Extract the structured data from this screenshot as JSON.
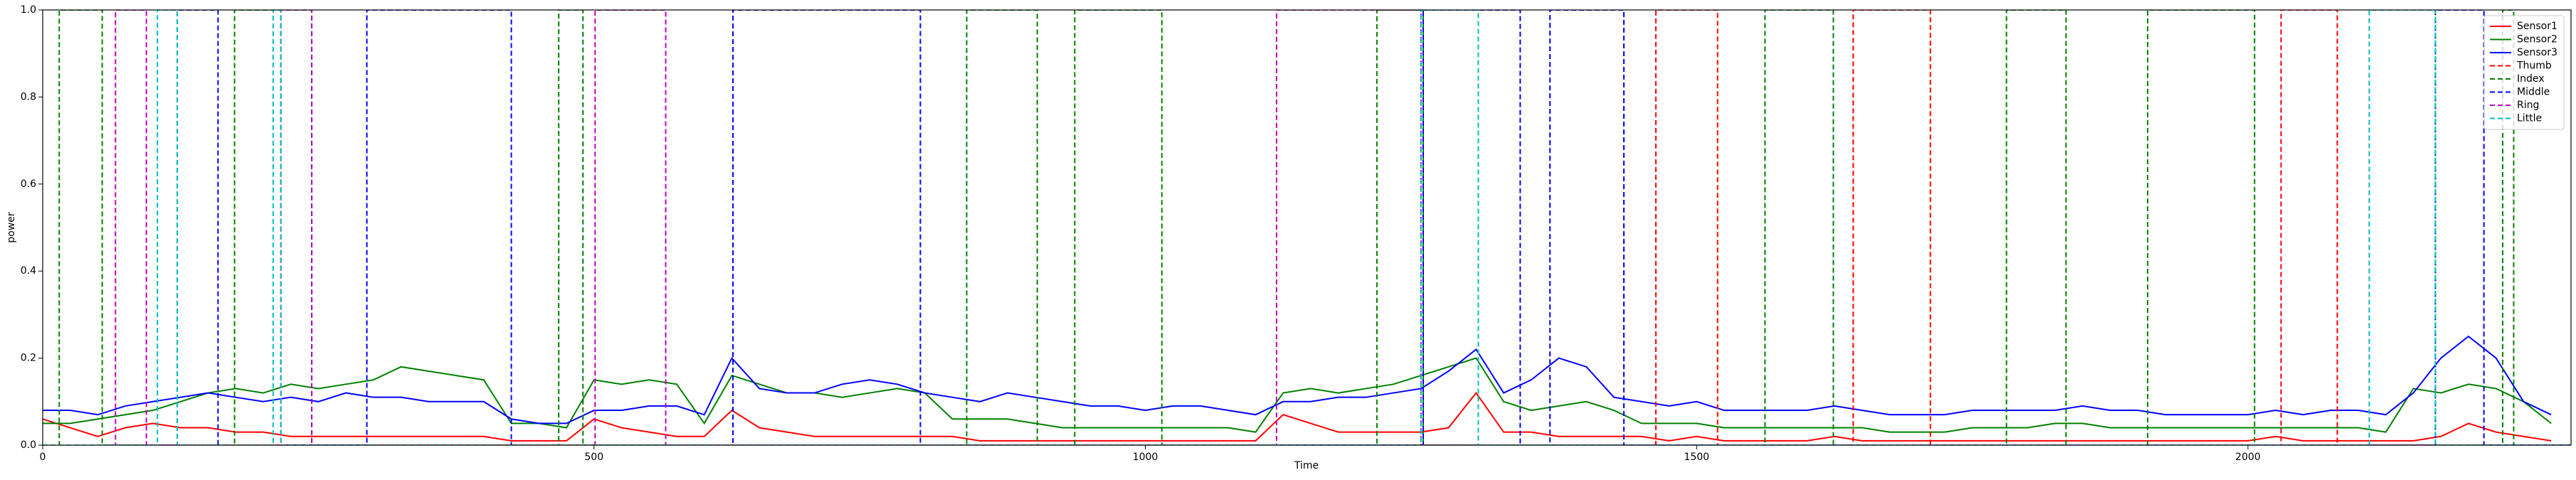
{
  "chart_data": {
    "type": "line",
    "xlabel": "Time",
    "ylabel": "power",
    "xlim": [
      0,
      2293
    ],
    "ylim": [
      0,
      1.0
    ],
    "xticks": [
      0,
      500,
      1000,
      1500,
      2000
    ],
    "yticks": [
      {
        "value": 0,
        "label": "0.0"
      },
      {
        "value": 0.2,
        "label": "0.2"
      },
      {
        "value": 0.4,
        "label": "0.4"
      },
      {
        "value": 0.6,
        "label": "0.6"
      },
      {
        "value": 0.8,
        "label": "0.8"
      },
      {
        "value": 1.0,
        "label": "1.0"
      }
    ],
    "legend": "upper right",
    "x": [
      0,
      25,
      50,
      75,
      100,
      125,
      150,
      175,
      200,
      225,
      250,
      275,
      300,
      325,
      350,
      375,
      400,
      425,
      450,
      475,
      500,
      525,
      550,
      575,
      600,
      625,
      650,
      675,
      700,
      725,
      750,
      775,
      800,
      825,
      850,
      875,
      900,
      925,
      950,
      975,
      1000,
      1025,
      1050,
      1075,
      1100,
      1125,
      1150,
      1175,
      1200,
      1225,
      1250,
      1275,
      1300,
      1325,
      1350,
      1375,
      1400,
      1425,
      1450,
      1475,
      1500,
      1525,
      1550,
      1575,
      1600,
      1625,
      1650,
      1675,
      1700,
      1725,
      1750,
      1775,
      1800,
      1825,
      1850,
      1875,
      1900,
      1925,
      1950,
      1975,
      2000,
      2025,
      2050,
      2075,
      2100,
      2125,
      2150,
      2175,
      2200,
      2225,
      2250,
      2275
    ],
    "series": [
      {
        "name": "Sensor1",
        "color": "#ff0000",
        "linestyle": "solid",
        "values": [
          0.06,
          0.04,
          0.02,
          0.04,
          0.05,
          0.04,
          0.04,
          0.03,
          0.03,
          0.02,
          0.02,
          0.02,
          0.02,
          0.02,
          0.02,
          0.02,
          0.02,
          0.01,
          0.01,
          0.01,
          0.06,
          0.04,
          0.03,
          0.02,
          0.02,
          0.08,
          0.04,
          0.03,
          0.02,
          0.02,
          0.02,
          0.02,
          0.02,
          0.02,
          0.01,
          0.01,
          0.01,
          0.01,
          0.01,
          0.01,
          0.01,
          0.01,
          0.01,
          0.01,
          0.01,
          0.07,
          0.05,
          0.03,
          0.03,
          0.03,
          0.03,
          0.04,
          0.12,
          0.03,
          0.03,
          0.02,
          0.02,
          0.02,
          0.02,
          0.01,
          0.02,
          0.01,
          0.01,
          0.01,
          0.01,
          0.02,
          0.01,
          0.01,
          0.01,
          0.01,
          0.01,
          0.01,
          0.01,
          0.01,
          0.01,
          0.01,
          0.01,
          0.01,
          0.01,
          0.01,
          0.01,
          0.02,
          0.01,
          0.01,
          0.01,
          0.01,
          0.01,
          0.02,
          0.05,
          0.03,
          0.02,
          0.01
        ]
      },
      {
        "name": "Sensor2",
        "color": "#008000",
        "linestyle": "solid",
        "values": [
          0.05,
          0.05,
          0.06,
          0.07,
          0.08,
          0.1,
          0.12,
          0.13,
          0.12,
          0.14,
          0.13,
          0.14,
          0.15,
          0.18,
          0.17,
          0.16,
          0.15,
          0.05,
          0.05,
          0.04,
          0.15,
          0.14,
          0.15,
          0.14,
          0.05,
          0.16,
          0.14,
          0.12,
          0.12,
          0.11,
          0.12,
          0.13,
          0.12,
          0.06,
          0.06,
          0.06,
          0.05,
          0.04,
          0.04,
          0.04,
          0.04,
          0.04,
          0.04,
          0.04,
          0.03,
          0.12,
          0.13,
          0.12,
          0.13,
          0.14,
          0.16,
          0.18,
          0.2,
          0.1,
          0.08,
          0.09,
          0.1,
          0.08,
          0.05,
          0.05,
          0.05,
          0.04,
          0.04,
          0.04,
          0.04,
          0.04,
          0.04,
          0.03,
          0.03,
          0.03,
          0.04,
          0.04,
          0.04,
          0.05,
          0.05,
          0.04,
          0.04,
          0.04,
          0.04,
          0.04,
          0.04,
          0.04,
          0.04,
          0.04,
          0.04,
          0.03,
          0.13,
          0.12,
          0.14,
          0.13,
          0.1,
          0.05
        ]
      },
      {
        "name": "Sensor3",
        "color": "#0000ff",
        "linestyle": "solid",
        "values": [
          0.08,
          0.08,
          0.07,
          0.09,
          0.1,
          0.11,
          0.12,
          0.11,
          0.1,
          0.11,
          0.1,
          0.12,
          0.11,
          0.11,
          0.1,
          0.1,
          0.1,
          0.06,
          0.05,
          0.05,
          0.08,
          0.08,
          0.09,
          0.09,
          0.07,
          0.2,
          0.13,
          0.12,
          0.12,
          0.14,
          0.15,
          0.14,
          0.12,
          0.11,
          0.1,
          0.12,
          0.11,
          0.1,
          0.09,
          0.09,
          0.08,
          0.09,
          0.09,
          0.08,
          0.07,
          0.1,
          0.1,
          0.11,
          0.11,
          0.12,
          0.13,
          0.17,
          0.22,
          0.12,
          0.15,
          0.2,
          0.18,
          0.11,
          0.1,
          0.09,
          0.1,
          0.08,
          0.08,
          0.08,
          0.08,
          0.09,
          0.08,
          0.07,
          0.07,
          0.07,
          0.08,
          0.08,
          0.08,
          0.08,
          0.09,
          0.08,
          0.08,
          0.07,
          0.07,
          0.07,
          0.07,
          0.08,
          0.07,
          0.08,
          0.08,
          0.07,
          0.12,
          0.2,
          0.25,
          0.2,
          0.1,
          0.07
        ]
      },
      {
        "name": "Thumb",
        "color": "#ff0000",
        "linestyle": "dashed",
        "x": [
          0,
          1463,
          1463,
          1519,
          1519,
          1642,
          1642,
          1712,
          1712,
          2030,
          2030,
          2081,
          2081,
          2293
        ],
        "values": [
          0,
          0,
          1,
          1,
          0,
          0,
          1,
          1,
          0,
          0,
          1,
          1,
          0,
          0
        ]
      },
      {
        "name": "Index",
        "color": "#008000",
        "linestyle": "dashed",
        "x": [
          0,
          15,
          15,
          54,
          54,
          174,
          174,
          244,
          244,
          468,
          468,
          490,
          490,
          838,
          838,
          902,
          902,
          936,
          936,
          1015,
          1015,
          1210,
          1210,
          1252,
          1252,
          1562,
          1562,
          1624,
          1624,
          1781,
          1781,
          1835,
          1835,
          1909,
          1909,
          2006,
          2006,
          2231,
          2231,
          2241,
          2241,
          2293
        ],
        "values": [
          0,
          0,
          1,
          1,
          0,
          0,
          1,
          1,
          0,
          0,
          1,
          1,
          0,
          0,
          1,
          1,
          0,
          0,
          1,
          1,
          0,
          0,
          1,
          1,
          0,
          0,
          1,
          1,
          0,
          0,
          1,
          1,
          0,
          0,
          1,
          1,
          0,
          0,
          1,
          1,
          0,
          0
        ]
      },
      {
        "name": "Middle",
        "color": "#0000ff",
        "linestyle": "dashed",
        "x": [
          0,
          122,
          122,
          159,
          159,
          294,
          294,
          425,
          425,
          626,
          626,
          796,
          796,
          1252,
          1252,
          1340,
          1340,
          1367,
          1367,
          1434,
          1434,
          2170,
          2170,
          2214,
          2214,
          2293
        ],
        "values": [
          0,
          0,
          1,
          1,
          0,
          0,
          1,
          1,
          0,
          0,
          1,
          1,
          0,
          0,
          1,
          1,
          0,
          0,
          1,
          1,
          0,
          0,
          1,
          1,
          0,
          0
        ]
      },
      {
        "name": "Ring",
        "color": "#bf00bf",
        "linestyle": "dashed",
        "x": [
          0,
          66,
          66,
          94,
          94,
          216,
          216,
          244,
          244,
          501,
          501,
          565,
          565,
          1119,
          1119,
          1250,
          1250,
          2293
        ],
        "values": [
          0,
          0,
          1,
          1,
          0,
          0,
          1,
          1,
          0,
          0,
          1,
          1,
          0,
          0,
          1,
          1,
          0,
          0
        ]
      },
      {
        "name": "Little",
        "color": "#00bfbf",
        "linestyle": "dashed",
        "x": [
          0,
          104,
          104,
          122,
          122,
          209,
          209,
          216,
          216,
          1250,
          1250,
          1302,
          1302,
          2110,
          2110,
          2170,
          2170,
          2293
        ],
        "values": [
          0,
          0,
          1,
          1,
          0,
          0,
          1,
          1,
          0,
          0,
          1,
          1,
          0,
          0,
          1,
          1,
          0,
          0
        ]
      }
    ]
  }
}
